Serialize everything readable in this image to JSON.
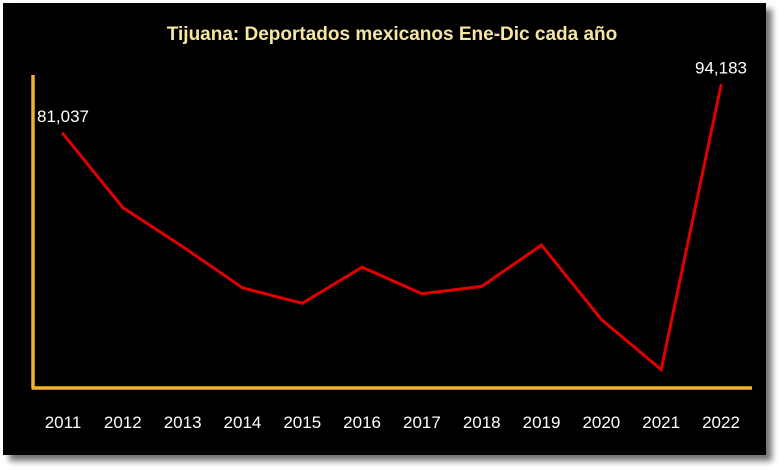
{
  "chart_data": {
    "type": "line",
    "title": "Tijuana: Deportados mexicanos Ene-Dic cada año",
    "categories": [
      "2011",
      "2012",
      "2013",
      "2014",
      "2015",
      "2016",
      "2017",
      "2018",
      "2019",
      "2020",
      "2021",
      "2022"
    ],
    "series": [
      {
        "values": [
          81037,
          61000,
          50400,
          39200,
          35000,
          44800,
          37600,
          39600,
          50800,
          30600,
          17000,
          94183
        ],
        "color": "#e00000"
      }
    ],
    "data_labels": [
      {
        "index": 0,
        "text": "81,037"
      },
      {
        "index": 11,
        "text": "94,183"
      }
    ],
    "ylim": [
      12000,
      97000
    ],
    "axis_color": "#f2b135",
    "background": "#000000",
    "grid": false,
    "legend": "none"
  }
}
